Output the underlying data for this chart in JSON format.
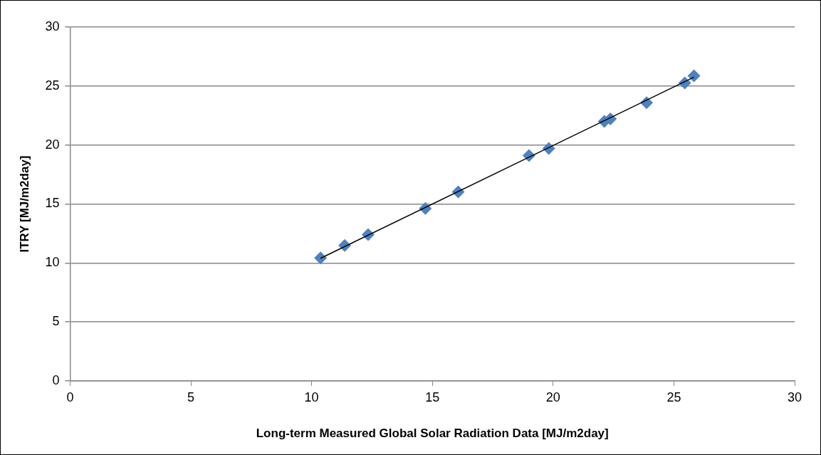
{
  "chart_data": {
    "type": "scatter",
    "xlabel": "Long-term Measured Global Solar Radiation Data [MJ/m2day]",
    "ylabel": "ITRY [MJ/m2day]",
    "x": [
      10.37,
      11.37,
      12.34,
      14.71,
      16.07,
      19.0,
      19.82,
      22.12,
      22.37,
      23.87,
      25.45,
      25.83
    ],
    "series": [
      {
        "type": "scatter",
        "color": "#4f81bd",
        "values": [
          10.43,
          11.48,
          12.41,
          14.63,
          16.02,
          19.11,
          19.71,
          22.0,
          22.22,
          23.58,
          25.26,
          25.87
        ]
      },
      {
        "type": "line",
        "color": "#000000",
        "x": [
          10.37,
          25.83
        ],
        "values": [
          10.4,
          25.75
        ],
        "marker": "none"
      }
    ],
    "xlim": [
      0,
      30
    ],
    "xticks": [
      0,
      5,
      10,
      15,
      20,
      25,
      30
    ],
    "ylim": [
      0,
      30
    ],
    "yticks": [
      0,
      5,
      10,
      15,
      20,
      25,
      30
    ],
    "grid": "y",
    "legend": false,
    "marker": "diamond"
  }
}
